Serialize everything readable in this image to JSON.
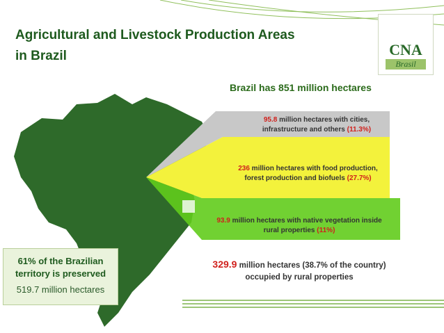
{
  "header": {
    "title_lines": [
      "Agricultural and Livestock Production Areas",
      "in Brazil"
    ]
  },
  "logo": {
    "name": "CNA",
    "subtitle": "Brasil"
  },
  "headline": "Brazil has 851 million hectares",
  "bands": [
    {
      "amount": "95.8",
      "text": "million hectares with cities, infrastructure and others",
      "share": "(11.3%)"
    },
    {
      "amount": "236",
      "text": "million hectares with food production, forest production and biofuels",
      "share": "(27.7%)"
    },
    {
      "amount": "93.9",
      "text": "million hectares with native vegetation inside rural properties",
      "share": "(11%)"
    }
  ],
  "rural": {
    "amount": "329.9",
    "text": "million hectares (38.7% of the country) occupied by rural properties"
  },
  "preserved": {
    "text": "61% of the Brazilian territory is preserved",
    "area": "519.7 million hectares"
  }
}
